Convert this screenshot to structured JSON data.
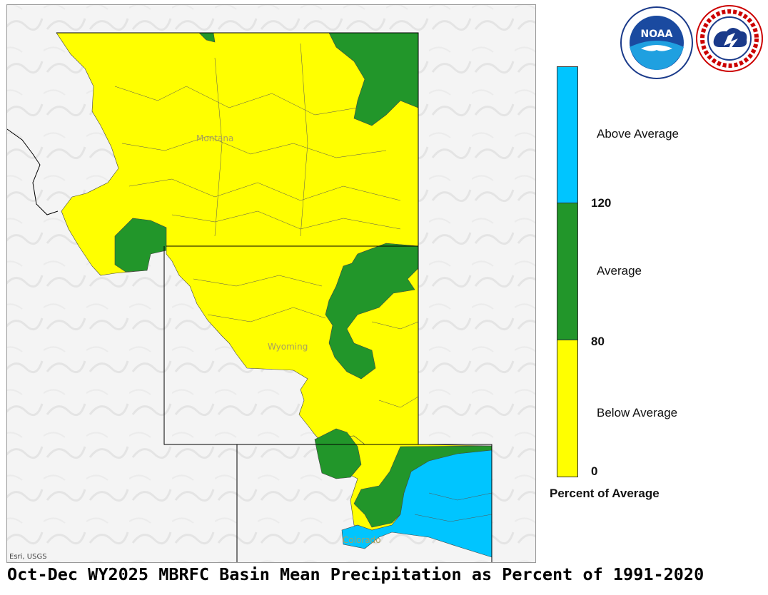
{
  "title": "Oct-Dec WY2025 MBRFC Basin Mean Precipitation as Percent of 1991-2020",
  "map": {
    "attribution": "Esri, USGS",
    "state_labels": [
      "Montana",
      "Wyoming",
      "Colorado"
    ]
  },
  "legend": {
    "title": "Percent of Average",
    "categories": [
      {
        "label": "Above Average",
        "color": "#00c5ff"
      },
      {
        "label": "Average",
        "color": "#22962a"
      },
      {
        "label": "Below Average",
        "color": "#ffff00"
      }
    ],
    "breaks": [
      "120",
      "80",
      "0"
    ]
  },
  "logos": {
    "noaa": {
      "text": "NOAA"
    },
    "nws": {
      "text": "NATIONAL WEATHER SERVICE"
    }
  },
  "colors": {
    "below": "#ffff00",
    "average": "#22962a",
    "above": "#00c5ff",
    "basemap": "#f4f4f4"
  }
}
